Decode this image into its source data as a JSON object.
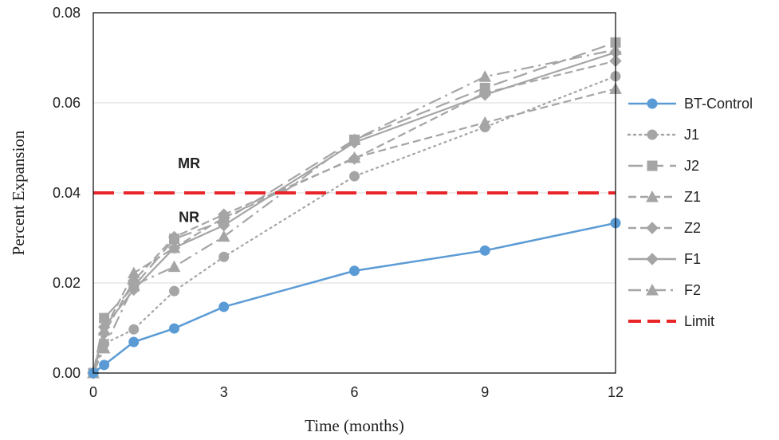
{
  "chart_data": {
    "type": "line",
    "xlabel": "Time (months)",
    "ylabel": "Percent Expansion",
    "xlim": [
      0,
      12
    ],
    "ylim": [
      0,
      0.08
    ],
    "xticks": [
      0,
      3,
      6,
      9,
      12
    ],
    "yticks": [
      "0.00",
      "0.02",
      "0.04",
      "0.06",
      "0.08"
    ],
    "grid": "horizontal",
    "legend_position": "right",
    "series": [
      {
        "name": "BT-Control",
        "color": "#5b9bd5",
        "dash": "solid",
        "marker": "circle",
        "filled": true,
        "x": [
          0,
          0.25,
          0.93,
          1.86,
          3,
          6,
          9,
          12
        ],
        "y": [
          0.0,
          0.0018,
          0.0069,
          0.0099,
          0.0147,
          0.0227,
          0.0272,
          0.0333
        ]
      },
      {
        "name": "J1",
        "color": "#a5a5a5",
        "dash": "dot",
        "marker": "circle",
        "x": [
          0,
          0.25,
          0.93,
          1.86,
          3,
          6,
          9,
          12
        ],
        "y": [
          0.0,
          0.0065,
          0.0097,
          0.0182,
          0.0258,
          0.0437,
          0.0546,
          0.0659
        ]
      },
      {
        "name": "J2",
        "color": "#a5a5a5",
        "dash": "longdash",
        "marker": "square",
        "x": [
          0,
          0.25,
          0.93,
          1.86,
          3,
          6,
          9,
          12
        ],
        "y": [
          0.0,
          0.0122,
          0.0192,
          0.0298,
          0.0338,
          0.0518,
          0.0633,
          0.0734
        ]
      },
      {
        "name": "Z1",
        "color": "#a5a5a5",
        "dash": "dash",
        "marker": "triangle",
        "x": [
          0,
          0.25,
          0.93,
          1.86,
          3,
          6,
          9,
          12
        ],
        "y": [
          0.0,
          0.0095,
          0.0222,
          0.0278,
          0.0345,
          0.0478,
          0.0556,
          0.0631
        ]
      },
      {
        "name": "Z2",
        "color": "#a5a5a5",
        "dash": "dash",
        "marker": "diamond",
        "x": [
          0,
          0.25,
          0.93,
          1.86,
          3,
          6,
          9,
          12
        ],
        "y": [
          0.0,
          0.0088,
          0.0205,
          0.0302,
          0.0352,
          0.0476,
          0.0622,
          0.0693
        ]
      },
      {
        "name": "F1",
        "color": "#a5a5a5",
        "dash": "solid",
        "marker": "diamond",
        "x": [
          0,
          0.25,
          0.93,
          1.86,
          3,
          6,
          9,
          12
        ],
        "y": [
          0.0,
          0.0102,
          0.0185,
          0.0278,
          0.0328,
          0.0512,
          0.0618,
          0.0712
        ]
      },
      {
        "name": "F2",
        "color": "#a5a5a5",
        "dash": "dashdot",
        "marker": "triangle",
        "x": [
          0,
          0.25,
          0.93,
          1.86,
          3,
          6,
          9,
          12
        ],
        "y": [
          0.0,
          0.0055,
          0.0195,
          0.0236,
          0.0303,
          0.0518,
          0.0658,
          0.0718
        ]
      },
      {
        "name": "Limit",
        "color": "#e8262a",
        "dash": "limit",
        "marker": "none",
        "x": [
          0,
          12
        ],
        "y": [
          0.04,
          0.04
        ]
      }
    ],
    "annotations": [
      {
        "text": "MR",
        "x": 2.2,
        "y": 0.0455
      },
      {
        "text": "NR",
        "x": 2.2,
        "y": 0.0335
      }
    ]
  }
}
